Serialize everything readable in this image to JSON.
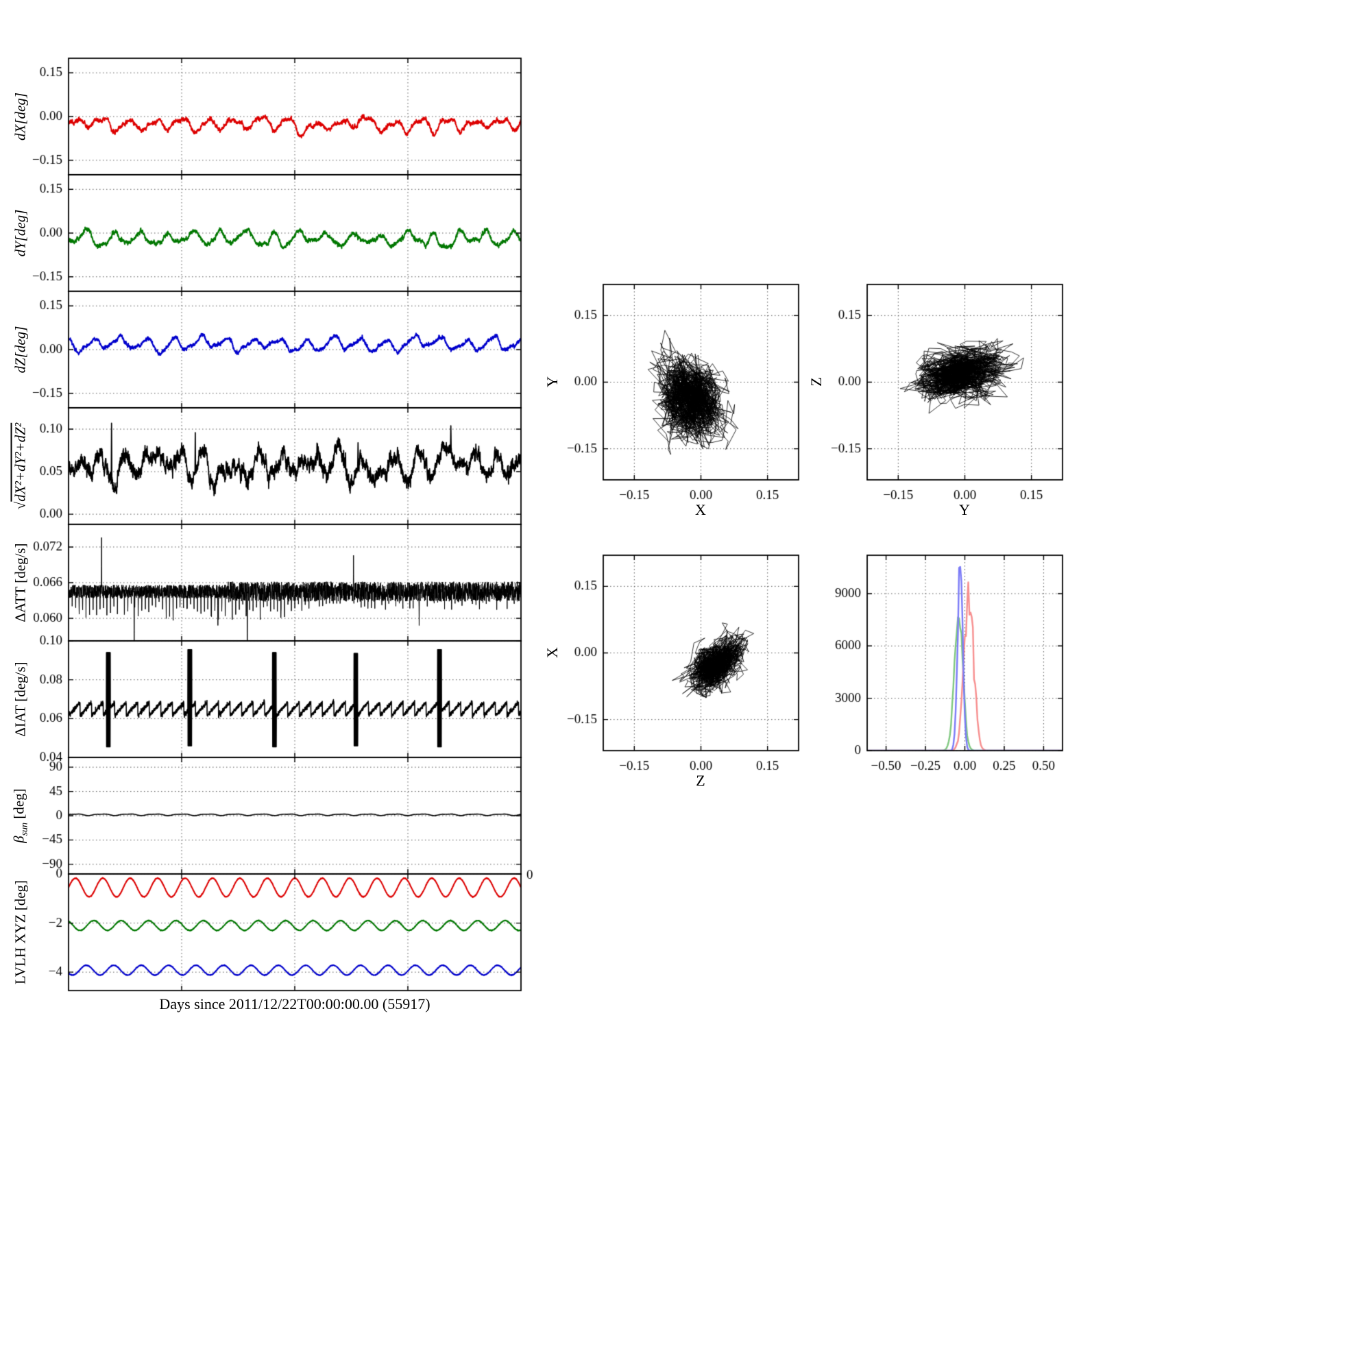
{
  "figure": {
    "background": "#ffffff",
    "xlabel": "Days since 2011/12/22T00:00:00.00 (55917)",
    "colors": {
      "red": "#dd0000",
      "green": "#007700",
      "blue": "#0000cc",
      "black": "#000000"
    }
  },
  "chart_data": [
    {
      "id": "dX",
      "type": "line",
      "ylabel": "dX[deg]",
      "xlim": [
        0,
        1
      ],
      "ylim": [
        -0.2,
        0.2
      ],
      "ytick_vals": [
        0.15,
        0,
        -0.15
      ],
      "ytick_labels": [
        "0.15",
        "0.00",
        "−0.15"
      ],
      "xgrid_vals": [
        0.25,
        0.5,
        0.75
      ],
      "series": [
        {
          "color": "red",
          "gen": "wiggle",
          "mean": -0.028,
          "comps": [
            [
              0.016,
              17,
              0
            ],
            [
              0.007,
              34,
              0.3
            ],
            [
              0.005,
              5,
              0.1
            ]
          ],
          "walk": 0.0015,
          "noise": 0.0028,
          "seed": 11,
          "n": 2600,
          "lw": 1.9
        }
      ]
    },
    {
      "id": "dY",
      "type": "line",
      "ylabel": "dY[deg]",
      "xlim": [
        0,
        1
      ],
      "ylim": [
        -0.2,
        0.2
      ],
      "ytick_vals": [
        0.15,
        0,
        -0.15
      ],
      "ytick_labels": [
        "0.15",
        "0.00",
        "−0.15"
      ],
      "xgrid_vals": [
        0.25,
        0.5,
        0.75
      ],
      "series": [
        {
          "color": "green",
          "gen": "wiggle",
          "mean": -0.02,
          "comps": [
            [
              0.019,
              17,
              0.55
            ],
            [
              0.009,
              8,
              0.2
            ],
            [
              0.006,
              34,
              0.8
            ]
          ],
          "walk": 0.0016,
          "noise": 0.0028,
          "seed": 22,
          "n": 2600,
          "lw": 1.9
        }
      ]
    },
    {
      "id": "dZ",
      "type": "line",
      "ylabel": "dZ[deg]",
      "xlim": [
        0,
        1
      ],
      "ylim": [
        -0.2,
        0.2
      ],
      "ytick_vals": [
        0.15,
        0,
        -0.15
      ],
      "ytick_labels": [
        "0.15",
        "0.00",
        "−0.15"
      ],
      "xgrid_vals": [
        0.25,
        0.5,
        0.75
      ],
      "series": [
        {
          "color": "blue",
          "gen": "wiggle",
          "mean": 0.018,
          "comps": [
            [
              0.018,
              17,
              0.3
            ],
            [
              0.007,
              6,
              0.6
            ],
            [
              0.005,
              34,
              0.15
            ]
          ],
          "walk": 0.0013,
          "noise": 0.0024,
          "seed": 33,
          "n": 2600,
          "lw": 1.9
        }
      ]
    },
    {
      "id": "mag",
      "type": "line",
      "ylabel_prefix": "√",
      "ylabel": "dX²+dY²+dZ²",
      "xlim": [
        0,
        1
      ],
      "ylim": [
        -0.012,
        0.125
      ],
      "ytick_vals": [
        0.1,
        0.05,
        0.0
      ],
      "ytick_labels": [
        "0.10",
        "0.05",
        "0.00"
      ],
      "xgrid_vals": [
        0.25,
        0.5,
        0.75
      ],
      "series": [
        {
          "color": "black",
          "gen": "wiggle",
          "mean": 0.055,
          "comps": [
            [
              0.011,
              17,
              0.1
            ],
            [
              0.007,
              23,
              0.45
            ],
            [
              0.006,
              3,
              0.7
            ]
          ],
          "walk": 0.0018,
          "noise": 0.0035,
          "clip_min": 0.018,
          "seed": 44,
          "n": 2800,
          "lw": 1.7,
          "spikes": [
            [
              0.095,
              0.107
            ],
            [
              0.28,
              0.096
            ],
            [
              0.64,
              0.084
            ],
            [
              0.845,
              0.104
            ]
          ]
        }
      ]
    },
    {
      "id": "dATT",
      "type": "line",
      "ylabel": "ΔATT [deg/s]",
      "xlim": [
        0,
        1
      ],
      "ylim": [
        0.0562,
        0.0758
      ],
      "ytick_vals": [
        0.072,
        0.066,
        0.06
      ],
      "ytick_labels": [
        "0.072",
        "0.066",
        "0.060"
      ],
      "xgrid_vals": [
        0.25,
        0.5,
        0.75
      ],
      "series": [
        {
          "color": "black",
          "gen": "band",
          "mean": 0.0645,
          "hw": 0.00115,
          "comb_n": 130,
          "comb_depth": 0.0038,
          "seed": 55,
          "n": 3400,
          "lw": 1.0,
          "spikes": [
            [
              0.073,
              0.0736
            ],
            [
              0.145,
              0.0512
            ],
            [
              0.33,
              0.0588
            ],
            [
              0.395,
              0.0518
            ],
            [
              0.63,
              0.0706
            ],
            [
              0.775,
              0.0588
            ]
          ]
        }
      ]
    },
    {
      "id": "dIAT",
      "type": "line",
      "ylabel": "ΔIAT [deg/s]",
      "xlim": [
        0,
        1
      ],
      "ylim": [
        0.04,
        0.1
      ],
      "ytick_vals": [
        0.1,
        0.08,
        0.06,
        0.04
      ],
      "ytick_labels": [
        "0.10",
        "0.08",
        "0.06",
        "0.04"
      ],
      "xgrid_vals": [
        0.25,
        0.5,
        0.75
      ],
      "series": [
        {
          "color": "black",
          "gen": "saw",
          "lo": 0.0615,
          "hi": 0.0685,
          "period": 0.0255,
          "noise": 0.00055,
          "burst_w": 0.0042,
          "bursts": [
            [
              0.088,
              0.0455,
              0.094
            ],
            [
              0.268,
              0.046,
              0.0955
            ],
            [
              0.455,
              0.0455,
              0.094
            ],
            [
              0.635,
              0.046,
              0.0935
            ],
            [
              0.82,
              0.0455,
              0.0955
            ]
          ],
          "seed": 66,
          "n": 3400,
          "lw": 1.6
        }
      ]
    },
    {
      "id": "beta_sun",
      "type": "line",
      "ylabel_main": "β",
      "ylabel_sub": "sun",
      "ylabel_unit": " [deg]",
      "xlim": [
        0,
        1
      ],
      "ylim": [
        -108,
        108
      ],
      "ytick_vals": [
        90,
        45,
        0,
        -45,
        -90
      ],
      "ytick_labels": [
        "90",
        "45",
        "0",
        "−45",
        "−90"
      ],
      "xgrid_vals": [
        0.25,
        0.5,
        0.75
      ],
      "series": [
        {
          "color": "black",
          "gen": "wiggle",
          "mean": 2.0,
          "comps": [
            [
              1.3,
              17,
              0
            ],
            [
              0.5,
              34,
              0.3
            ]
          ],
          "walk": 0,
          "noise": 0.15,
          "seed": 77,
          "n": 2600,
          "lw": 1.5
        }
      ]
    },
    {
      "id": "lvlh",
      "type": "line",
      "ylabel": "LVLH XYZ [deg]",
      "xlim": [
        0,
        1
      ],
      "ylim": [
        -4.75,
        0
      ],
      "ytick_vals": [
        0,
        -2,
        -4
      ],
      "ytick_labels": [
        "0",
        "−2",
        "−4"
      ],
      "xgrid_vals": [
        0.25,
        0.5,
        0.75
      ],
      "extra_label": {
        "text": "0"
      },
      "series": [
        {
          "color": "red",
          "gen": "sine",
          "mean": -0.55,
          "amp": 0.38,
          "cycles": 16.5,
          "phase": 0,
          "noise": 0.008,
          "seed": 81,
          "n": 2600,
          "lw": 2.0
        },
        {
          "color": "green",
          "gen": "sine",
          "mean": -2.1,
          "amp": 0.2,
          "cycles": 16.5,
          "phase": 0.33,
          "noise": 0.008,
          "seed": 82,
          "n": 2600,
          "lw": 1.9
        },
        {
          "color": "blue",
          "gen": "sine",
          "mean": -3.92,
          "amp": 0.2,
          "cycles": 16.5,
          "phase": 0.6,
          "noise": 0.008,
          "seed": 83,
          "n": 2600,
          "lw": 1.9
        }
      ]
    },
    {
      "id": "scatter_xy",
      "type": "scatter",
      "xlabel": "X",
      "ylabel": "Y",
      "xlim": [
        -0.22,
        0.22
      ],
      "ylim": [
        -0.22,
        0.22
      ],
      "xtick_vals": [
        -0.15,
        0,
        0.15
      ],
      "xtick_labels": [
        "−0.15",
        "0.00",
        "0.15"
      ],
      "ytick_vals": [
        -0.15,
        0,
        0.15
      ],
      "ytick_labels": [
        "−0.15",
        "0.00",
        "0.15"
      ],
      "walks": [
        {
          "cx": -0.025,
          "cy": -0.04,
          "sx": 0.072,
          "sy": 0.082,
          "corr": -0.25,
          "n": 1600,
          "seed": 91
        }
      ]
    },
    {
      "id": "scatter_yz",
      "type": "scatter",
      "xlabel": "Y",
      "ylabel": "Z",
      "xlim": [
        -0.22,
        0.22
      ],
      "ylim": [
        -0.22,
        0.22
      ],
      "xtick_vals": [
        -0.15,
        0,
        0.15
      ],
      "xtick_labels": [
        "−0.15",
        "0.00",
        "0.15"
      ],
      "ytick_vals": [
        -0.15,
        0,
        0.15
      ],
      "ytick_labels": [
        "−0.15",
        "0.00",
        "0.15"
      ],
      "walks": [
        {
          "cx": -0.015,
          "cy": 0.02,
          "sx": 0.09,
          "sy": 0.055,
          "corr": 0.1,
          "n": 1500,
          "seed": 92
        },
        {
          "cx": 0.055,
          "cy": 0.05,
          "sx": 0.02,
          "sy": 0.015,
          "corr": 0,
          "n": 90,
          "seed": 93
        }
      ]
    },
    {
      "id": "scatter_zx",
      "type": "scatter",
      "xlabel": "Z",
      "ylabel": "X",
      "xlim": [
        -0.22,
        0.22
      ],
      "ylim": [
        -0.22,
        0.22
      ],
      "xtick_vals": [
        -0.15,
        0,
        0.15
      ],
      "xtick_labels": [
        "−0.15",
        "0.00",
        "0.15"
      ],
      "ytick_vals": [
        -0.15,
        0,
        0.15
      ],
      "ytick_labels": [
        "−0.15",
        "0.00",
        "0.15"
      ],
      "walks": [
        {
          "cx": 0.03,
          "cy": -0.028,
          "sx": 0.055,
          "sy": 0.05,
          "corr": 0.45,
          "n": 1500,
          "seed": 94
        }
      ]
    },
    {
      "id": "hist_xyz",
      "type": "hist",
      "xlim": [
        -0.62,
        0.62
      ],
      "ylim": [
        0,
        11200
      ],
      "xtick_vals": [
        -0.5,
        -0.25,
        0,
        0.25,
        0.5
      ],
      "xtick_labels": [
        "−0.50",
        "−0.25",
        "0.00",
        "0.25",
        "0.50"
      ],
      "ytick_vals": [
        0,
        3000,
        6000,
        9000
      ],
      "ytick_labels": [
        "0",
        "3000",
        "6000",
        "9000"
      ],
      "curves": [
        {
          "color": "#7fc87f",
          "center": -0.04,
          "sigma": 0.027,
          "peak": 7800,
          "seed": 97
        },
        {
          "color": "#f78f8f",
          "center": 0.025,
          "sigma": 0.03,
          "peak": 9000,
          "seed": 98
        },
        {
          "color": "#7b7bf7",
          "center": -0.03,
          "sigma": 0.016,
          "peak": 10800,
          "seed": 96
        }
      ]
    }
  ]
}
